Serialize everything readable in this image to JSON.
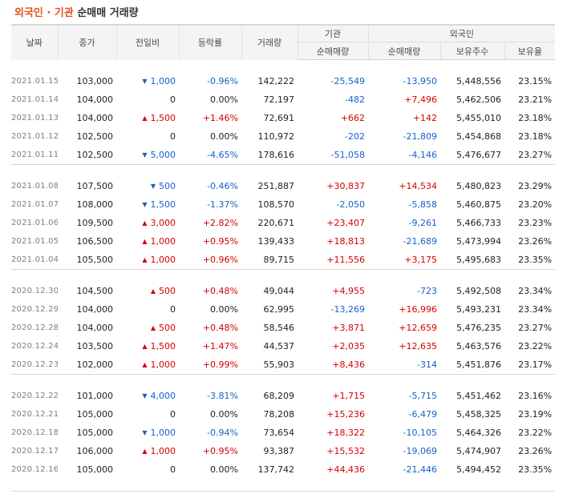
{
  "title": {
    "highlight": "외국인 · 기관",
    "rest": "순매매 거래량"
  },
  "headers": {
    "date": "날짜",
    "close": "종가",
    "change": "전일비",
    "rate": "등락률",
    "volume": "거래량",
    "institution": "기관",
    "foreign": "외국인",
    "inst_net": "순매매량",
    "for_net": "순매매량",
    "for_holding": "보유주수",
    "for_ratio": "보유율"
  },
  "colors": {
    "up": "#d60000",
    "down": "#1760c8",
    "accent": "#e0531c"
  },
  "groups": [
    [
      {
        "date": "2021.01.15",
        "close": "103,000",
        "dir": "down",
        "change": "1,000",
        "rate": "-0.96%",
        "volume": "142,222",
        "inst": "-25,549",
        "foreign": "-13,950",
        "holding": "5,448,556",
        "ratio": "23.15%"
      },
      {
        "date": "2021.01.14",
        "close": "104,000",
        "dir": "none",
        "change": "0",
        "rate": "0.00%",
        "volume": "72,197",
        "inst": "-482",
        "foreign": "+7,496",
        "holding": "5,462,506",
        "ratio": "23.21%"
      },
      {
        "date": "2021.01.13",
        "close": "104,000",
        "dir": "up",
        "change": "1,500",
        "rate": "+1.46%",
        "volume": "72,691",
        "inst": "+662",
        "foreign": "+142",
        "holding": "5,455,010",
        "ratio": "23.18%"
      },
      {
        "date": "2021.01.12",
        "close": "102,500",
        "dir": "none",
        "change": "0",
        "rate": "0.00%",
        "volume": "110,972",
        "inst": "-202",
        "foreign": "-21,809",
        "holding": "5,454,868",
        "ratio": "23.18%"
      },
      {
        "date": "2021.01.11",
        "close": "102,500",
        "dir": "down",
        "change": "5,000",
        "rate": "-4.65%",
        "volume": "178,616",
        "inst": "-51,058",
        "foreign": "-4,146",
        "holding": "5,476,677",
        "ratio": "23.27%"
      }
    ],
    [
      {
        "date": "2021.01.08",
        "close": "107,500",
        "dir": "down",
        "change": "500",
        "rate": "-0.46%",
        "volume": "251,887",
        "inst": "+30,837",
        "foreign": "+14,534",
        "holding": "5,480,823",
        "ratio": "23.29%"
      },
      {
        "date": "2021.01.07",
        "close": "108,000",
        "dir": "down",
        "change": "1,500",
        "rate": "-1.37%",
        "volume": "108,570",
        "inst": "-2,050",
        "foreign": "-5,858",
        "holding": "5,460,875",
        "ratio": "23.20%"
      },
      {
        "date": "2021.01.06",
        "close": "109,500",
        "dir": "up",
        "change": "3,000",
        "rate": "+2.82%",
        "volume": "220,671",
        "inst": "+23,407",
        "foreign": "-9,261",
        "holding": "5,466,733",
        "ratio": "23.23%"
      },
      {
        "date": "2021.01.05",
        "close": "106,500",
        "dir": "up",
        "change": "1,000",
        "rate": "+0.95%",
        "volume": "139,433",
        "inst": "+18,813",
        "foreign": "-21,689",
        "holding": "5,473,994",
        "ratio": "23.26%"
      },
      {
        "date": "2021.01.04",
        "close": "105,500",
        "dir": "up",
        "change": "1,000",
        "rate": "+0.96%",
        "volume": "89,715",
        "inst": "+11,556",
        "foreign": "+3,175",
        "holding": "5,495,683",
        "ratio": "23.35%"
      }
    ],
    [
      {
        "date": "2020.12.30",
        "close": "104,500",
        "dir": "up",
        "change": "500",
        "rate": "+0.48%",
        "volume": "49,044",
        "inst": "+4,955",
        "foreign": "-723",
        "holding": "5,492,508",
        "ratio": "23.34%"
      },
      {
        "date": "2020.12.29",
        "close": "104,000",
        "dir": "none",
        "change": "0",
        "rate": "0.00%",
        "volume": "62,995",
        "inst": "-13,269",
        "foreign": "+16,996",
        "holding": "5,493,231",
        "ratio": "23.34%"
      },
      {
        "date": "2020.12.28",
        "close": "104,000",
        "dir": "up",
        "change": "500",
        "rate": "+0.48%",
        "volume": "58,546",
        "inst": "+3,871",
        "foreign": "+12,659",
        "holding": "5,476,235",
        "ratio": "23.27%"
      },
      {
        "date": "2020.12.24",
        "close": "103,500",
        "dir": "up",
        "change": "1,500",
        "rate": "+1.47%",
        "volume": "44,537",
        "inst": "+2,035",
        "foreign": "+12,635",
        "holding": "5,463,576",
        "ratio": "23.22%"
      },
      {
        "date": "2020.12.23",
        "close": "102,000",
        "dir": "up",
        "change": "1,000",
        "rate": "+0.99%",
        "volume": "55,903",
        "inst": "+8,436",
        "foreign": "-314",
        "holding": "5,451,876",
        "ratio": "23.17%"
      }
    ],
    [
      {
        "date": "2020.12.22",
        "close": "101,000",
        "dir": "down",
        "change": "4,000",
        "rate": "-3.81%",
        "volume": "68,209",
        "inst": "+1,715",
        "foreign": "-5,715",
        "holding": "5,451,462",
        "ratio": "23.16%"
      },
      {
        "date": "2020.12.21",
        "close": "105,000",
        "dir": "none",
        "change": "0",
        "rate": "0.00%",
        "volume": "78,208",
        "inst": "+15,236",
        "foreign": "-6,479",
        "holding": "5,458,325",
        "ratio": "23.19%"
      },
      {
        "date": "2020.12.18",
        "close": "105,000",
        "dir": "down",
        "change": "1,000",
        "rate": "-0.94%",
        "volume": "73,654",
        "inst": "+18,322",
        "foreign": "-10,105",
        "holding": "5,464,326",
        "ratio": "23.22%"
      },
      {
        "date": "2020.12.17",
        "close": "106,000",
        "dir": "up",
        "change": "1,000",
        "rate": "+0.95%",
        "volume": "93,387",
        "inst": "+15,532",
        "foreign": "-19,069",
        "holding": "5,474,907",
        "ratio": "23.26%"
      },
      {
        "date": "2020.12.16",
        "close": "105,000",
        "dir": "none",
        "change": "0",
        "rate": "0.00%",
        "volume": "137,742",
        "inst": "+44,436",
        "foreign": "-21,446",
        "holding": "5,494,452",
        "ratio": "23.35%"
      }
    ]
  ]
}
